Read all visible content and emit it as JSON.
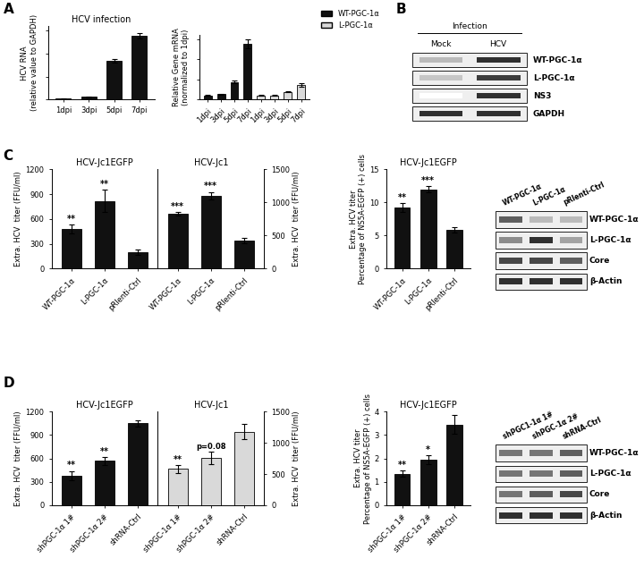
{
  "panel_labels": [
    "A",
    "B",
    "C",
    "D"
  ],
  "chart_data": [
    {
      "type": "bar",
      "title": "HCV infection",
      "y_label": "HCV RNA\n(relative value to GAPDH)",
      "categories": [
        "1dpi",
        "3dpi",
        "5dpi",
        "7dpi"
      ],
      "series": [
        {
          "color": "#111111",
          "values": [
            0.02,
            0.1,
            1.7,
            2.8
          ],
          "errors": [
            0.005,
            0.02,
            0.08,
            0.12
          ]
        }
      ],
      "ylim": [
        0,
        3.2
      ],
      "yticks": [
        0,
        1,
        2,
        3
      ],
      "tick_labels": "x"
    },
    {
      "type": "bar",
      "y_label": "Relative Gene mRNA\n(normalized to 1dpi)",
      "categories": [
        "1dpi",
        "3dpi",
        "5dpi",
        "7dpi",
        "1dpi",
        "3dpi",
        "5dpi",
        "7dpi"
      ],
      "series": [
        {
          "name": "WT-PGC-1α",
          "color": "#111111",
          "values": [
            1,
            1.3,
            4.3,
            13.8,
            null,
            null,
            null,
            null
          ],
          "errors": [
            0.1,
            0.15,
            0.3,
            1.1,
            null,
            null,
            null,
            null
          ]
        },
        {
          "name": "L-PGC-1α",
          "color": "#d9d9d9",
          "values": [
            null,
            null,
            null,
            null,
            1,
            1,
            1.8,
            3.6
          ],
          "errors": [
            null,
            null,
            null,
            null,
            0.1,
            0.1,
            0.1,
            0.4
          ]
        }
      ],
      "ylim": [
        0,
        16
      ],
      "yticks": [
        0,
        5,
        10,
        15
      ],
      "tick_labels": "x",
      "legend": "upper right"
    },
    {
      "type": "bar",
      "title": "HCV-Jc1EGFP",
      "y_label": "Extra. HCV  titer (FFU/ml)",
      "categories": [
        "WT-PGC-1α",
        "L-PGC-1α",
        "pRlenti-Ctrl"
      ],
      "series": [
        {
          "color": "#111111",
          "values": [
            480,
            820,
            200
          ],
          "errors": [
            50,
            130,
            30
          ]
        }
      ],
      "annotations": [
        "**",
        "**",
        null
      ],
      "ylim": [
        0,
        1200
      ],
      "yticks": [
        0,
        300,
        600,
        900,
        1200
      ]
    },
    {
      "type": "bar",
      "title": "HCV-Jc1",
      "y_label": "Extra. HCV  titer (FFU/ml)",
      "categories": [
        "WT-PGC-1α",
        "L-PGC-1α",
        "pRlenti-Ctrl"
      ],
      "series": [
        {
          "color": "#111111",
          "values": [
            830,
            1100,
            420
          ],
          "errors": [
            30,
            60,
            40
          ]
        }
      ],
      "annotations": [
        "***",
        "***",
        null
      ],
      "ylim": [
        0,
        1500
      ],
      "yticks": [
        0,
        500,
        1000,
        1500
      ]
    },
    {
      "type": "bar",
      "title": "HCV-Jc1EGFP",
      "y_label": "Extra. HCV titer\nPercentage of NS5A-EGFP (+) cells",
      "categories": [
        "WT-PGC-1α",
        "L-PGC-1α",
        "pRlenti-Ctrl"
      ],
      "series": [
        {
          "color": "#111111",
          "values": [
            9.2,
            12,
            5.8
          ],
          "errors": [
            0.7,
            0.5,
            0.4
          ]
        }
      ],
      "annotations": [
        "**",
        "***",
        null
      ],
      "ylim": [
        0,
        15
      ],
      "yticks": [
        0,
        5,
        10,
        15
      ]
    },
    {
      "type": "bar",
      "title": "HCV-Jc1EGFP",
      "y_label": "Extra. HCV  titer (FFU/ml)",
      "categories": [
        "shPGC-1α 1#",
        "shPGC-1α 2#",
        "shRNA-Ctrl"
      ],
      "series": [
        {
          "color": "#111111",
          "values": [
            380,
            570,
            1050
          ],
          "errors": [
            60,
            50,
            40
          ]
        }
      ],
      "annotations": [
        "**",
        "**",
        null
      ],
      "ylim": [
        0,
        1200
      ],
      "yticks": [
        0,
        300,
        600,
        900,
        1200
      ]
    },
    {
      "type": "bar",
      "title": "HCV-Jc1",
      "y_label": "Extra. HCV  titer (FFU/ml)",
      "categories": [
        "shPGC-1α 1#",
        "shPGC-1α 2#",
        "shRNA-Ctrl"
      ],
      "series": [
        {
          "color": "#d9d9d9",
          "values": [
            580,
            760,
            1180
          ],
          "errors": [
            60,
            100,
            120
          ]
        }
      ],
      "annotations": [
        "**",
        "p=0.08",
        null
      ],
      "ylim": [
        0,
        1500
      ],
      "yticks": [
        0,
        500,
        1000,
        1500
      ]
    },
    {
      "type": "bar",
      "title": "HCV-Jc1EGFP",
      "y_label": "Extra. HCV titer\nPercentage of NS5A-EGFP (+) cells",
      "categories": [
        "shPGC-1α 1#",
        "shPGC-1α 2#",
        "shRNA-Ctrl"
      ],
      "series": [
        {
          "color": "#111111",
          "values": [
            1.35,
            1.95,
            3.45
          ],
          "errors": [
            0.12,
            0.2,
            0.4
          ]
        }
      ],
      "annotations": [
        "**",
        "*",
        null
      ],
      "ylim": [
        0,
        4
      ],
      "yticks": [
        0,
        1,
        2,
        3,
        4
      ]
    }
  ],
  "blots": [
    {
      "header": "Infection",
      "columns": [
        "Mock",
        "HCV"
      ],
      "rows": [
        {
          "label": "WT-PGC-1α",
          "bands": [
            0.3,
            0.9
          ]
        },
        {
          "label": "L-PGC-1α",
          "bands": [
            0.25,
            0.85
          ]
        },
        {
          "label": "NS3",
          "bands": [
            0,
            0.9
          ]
        },
        {
          "label": "GAPDH",
          "bands": [
            0.9,
            0.9
          ]
        }
      ]
    },
    {
      "columns": [
        "WT-PGC-1α",
        "L-PGC-1α",
        "pRlenti-Ctrl"
      ],
      "rows": [
        {
          "label": "WT-PGC-1α",
          "bands": [
            0.7,
            0.3,
            0.3
          ]
        },
        {
          "label": "L-PGC-1α",
          "bands": [
            0.5,
            0.9,
            0.4
          ]
        },
        {
          "label": "Core",
          "bands": [
            0.8,
            0.8,
            0.7
          ]
        },
        {
          "label": "β-Actin",
          "bands": [
            0.9,
            0.9,
            0.9
          ]
        }
      ]
    },
    {
      "columns": [
        "shPGC1-1α 1#",
        "shPGC-1α 2#",
        "shRNA-Ctrl"
      ],
      "rows": [
        {
          "label": "WT-PGC-1α",
          "bands": [
            0.6,
            0.6,
            0.7
          ]
        },
        {
          "label": "L-PGC-1α",
          "bands": [
            0.6,
            0.6,
            0.7
          ]
        },
        {
          "label": "Core",
          "bands": [
            0.6,
            0.7,
            0.8
          ]
        },
        {
          "label": "β-Actin",
          "bands": [
            0.9,
            0.9,
            0.9
          ]
        }
      ]
    }
  ]
}
